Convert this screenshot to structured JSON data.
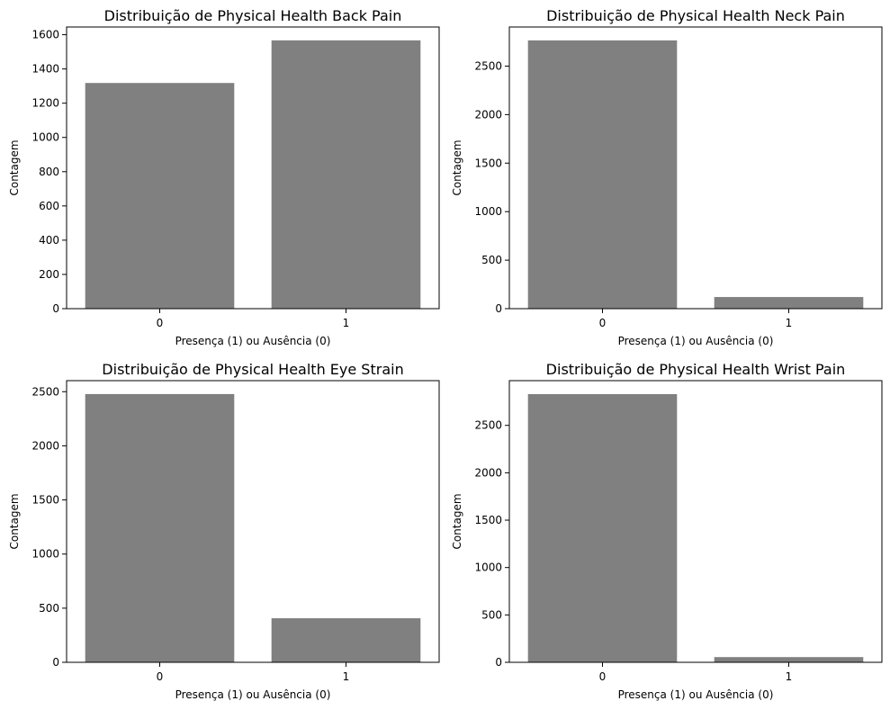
{
  "chart_data": [
    {
      "type": "bar",
      "title": "Distribuição de Physical Health Back Pain",
      "xlabel": "Presença (1) ou Ausência (0)",
      "ylabel": "Contagem",
      "categories": [
        "0",
        "1"
      ],
      "values": [
        1318,
        1567
      ],
      "ylim": [
        0,
        1645
      ],
      "yticks": [
        0,
        200,
        400,
        600,
        800,
        1000,
        1200,
        1400,
        1600
      ],
      "color": "#808080"
    },
    {
      "type": "bar",
      "title": "Distribuição de Physical Health Neck Pain",
      "xlabel": "Presença (1) ou Ausência (0)",
      "ylabel": "Contagem",
      "categories": [
        "0",
        "1"
      ],
      "values": [
        2765,
        120
      ],
      "ylim": [
        0,
        2903
      ],
      "yticks": [
        0,
        500,
        1000,
        1500,
        2000,
        2500
      ],
      "color": "#808080"
    },
    {
      "type": "bar",
      "title": "Distribuição de Physical Health Eye Strain",
      "xlabel": "Presença (1) ou Ausência (0)",
      "ylabel": "Contagem",
      "categories": [
        "0",
        "1"
      ],
      "values": [
        2478,
        407
      ],
      "ylim": [
        0,
        2602
      ],
      "yticks": [
        0,
        500,
        1000,
        1500,
        2000,
        2500
      ],
      "color": "#808080"
    },
    {
      "type": "bar",
      "title": "Distribuição de Physical Health Wrist Pain",
      "xlabel": "Presença (1) ou Ausência (0)",
      "ylabel": "Contagem",
      "categories": [
        "0",
        "1"
      ],
      "values": [
        2830,
        55
      ],
      "ylim": [
        0,
        2972
      ],
      "yticks": [
        0,
        500,
        1000,
        1500,
        2000,
        2500
      ],
      "color": "#808080"
    }
  ]
}
